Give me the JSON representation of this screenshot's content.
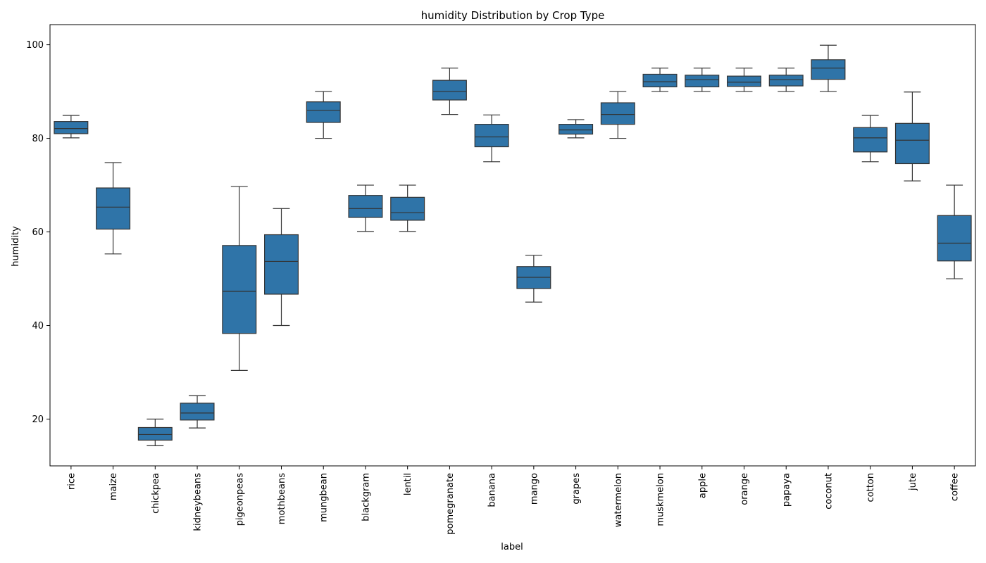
{
  "chart_data": {
    "type": "box",
    "title": "humidity Distribution by Crop Type",
    "xlabel": "label",
    "ylabel": "humidity",
    "ylim": [
      10,
      104.3
    ],
    "yticks": [
      20,
      40,
      60,
      80,
      100
    ],
    "box_color": "#2f74a8",
    "line_color": "#333333",
    "grid": false,
    "categories": [
      "rice",
      "maize",
      "chickpea",
      "kidneybeans",
      "pigeonpeas",
      "mothbeans",
      "mungbean",
      "blackgram",
      "lentil",
      "pomegranate",
      "banana",
      "mango",
      "grapes",
      "watermelon",
      "muskmelon",
      "apple",
      "orange",
      "papaya",
      "coconut",
      "cotton",
      "jute",
      "coffee"
    ],
    "boxes": [
      {
        "label": "rice",
        "whislo": 80.1,
        "q1": 81.0,
        "med": 82.1,
        "q3": 83.6,
        "whishi": 84.9
      },
      {
        "label": "maize",
        "whislo": 55.3,
        "q1": 60.6,
        "med": 65.3,
        "q3": 69.4,
        "whishi": 74.8
      },
      {
        "label": "chickpea",
        "whislo": 14.3,
        "q1": 15.5,
        "med": 16.7,
        "q3": 18.2,
        "whishi": 20.0
      },
      {
        "label": "kidneybeans",
        "whislo": 18.1,
        "q1": 19.8,
        "med": 21.3,
        "q3": 23.4,
        "whishi": 25.0
      },
      {
        "label": "pigeonpeas",
        "whislo": 30.4,
        "q1": 38.3,
        "med": 47.3,
        "q3": 57.1,
        "whishi": 69.7
      },
      {
        "label": "mothbeans",
        "whislo": 40.0,
        "q1": 46.7,
        "med": 53.7,
        "q3": 59.4,
        "whishi": 65.0
      },
      {
        "label": "mungbean",
        "whislo": 80.0,
        "q1": 83.4,
        "med": 86.0,
        "q3": 87.8,
        "whishi": 90.0
      },
      {
        "label": "blackgram",
        "whislo": 60.1,
        "q1": 63.1,
        "med": 65.0,
        "q3": 67.8,
        "whishi": 70.0
      },
      {
        "label": "lentil",
        "whislo": 60.1,
        "q1": 62.5,
        "med": 64.1,
        "q3": 67.4,
        "whishi": 70.0
      },
      {
        "label": "pomegranate",
        "whislo": 85.1,
        "q1": 88.2,
        "med": 90.0,
        "q3": 92.4,
        "whishi": 95.0
      },
      {
        "label": "banana",
        "whislo": 75.0,
        "q1": 78.2,
        "med": 80.3,
        "q3": 83.0,
        "whishi": 85.0
      },
      {
        "label": "mango",
        "whislo": 45.0,
        "q1": 47.9,
        "med": 50.3,
        "q3": 52.6,
        "whishi": 55.0
      },
      {
        "label": "grapes",
        "whislo": 80.1,
        "q1": 80.9,
        "med": 81.8,
        "q3": 83.0,
        "whishi": 84.0
      },
      {
        "label": "watermelon",
        "whislo": 80.0,
        "q1": 83.0,
        "med": 85.1,
        "q3": 87.6,
        "whishi": 90.0
      },
      {
        "label": "muskmelon",
        "whislo": 90.0,
        "q1": 91.0,
        "med": 92.1,
        "q3": 93.7,
        "whishi": 95.0
      },
      {
        "label": "apple",
        "whislo": 90.0,
        "q1": 91.0,
        "med": 92.5,
        "q3": 93.5,
        "whishi": 95.0
      },
      {
        "label": "orange",
        "whislo": 90.0,
        "q1": 91.1,
        "med": 92.0,
        "q3": 93.3,
        "whishi": 95.0
      },
      {
        "label": "papaya",
        "whislo": 90.0,
        "q1": 91.2,
        "med": 92.5,
        "q3": 93.5,
        "whishi": 95.0
      },
      {
        "label": "coconut",
        "whislo": 90.0,
        "q1": 92.6,
        "med": 95.0,
        "q3": 96.8,
        "whishi": 99.9
      },
      {
        "label": "cotton",
        "whislo": 75.0,
        "q1": 77.1,
        "med": 80.1,
        "q3": 82.3,
        "whishi": 84.9
      },
      {
        "label": "jute",
        "whislo": 70.9,
        "q1": 74.6,
        "med": 79.6,
        "q3": 83.2,
        "whishi": 89.9
      },
      {
        "label": "coffee",
        "whislo": 50.0,
        "q1": 53.8,
        "med": 57.6,
        "q3": 63.5,
        "whishi": 70.0
      }
    ]
  }
}
